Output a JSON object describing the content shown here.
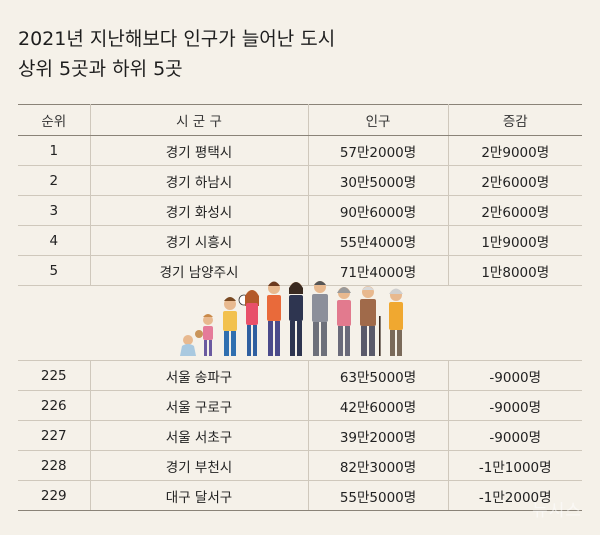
{
  "title": {
    "line1": "2021년 지난해보다 인구가 늘어난 도시",
    "line2": "상위 5곳과 하위 5곳"
  },
  "headers": [
    "순위",
    "시 군 구",
    "인구",
    "증감"
  ],
  "top_rows": [
    {
      "rank": "1",
      "city": "경기 평택시",
      "population": "57만2000명",
      "change": "2만9000명"
    },
    {
      "rank": "2",
      "city": "경기 하남시",
      "population": "30만5000명",
      "change": "2만6000명"
    },
    {
      "rank": "3",
      "city": "경기 화성시",
      "population": "90만6000명",
      "change": "2만6000명"
    },
    {
      "rank": "4",
      "city": "경기 시흥시",
      "population": "55만4000명",
      "change": "1만9000명"
    },
    {
      "rank": "5",
      "city": "경기 남양주시",
      "population": "71만4000명",
      "change": "1만8000명"
    }
  ],
  "bottom_rows": [
    {
      "rank": "225",
      "city": "서울 송파구",
      "population": "63만5000명",
      "change": "-9000명"
    },
    {
      "rank": "226",
      "city": "서울 구로구",
      "population": "42만6000명",
      "change": "-9000명"
    },
    {
      "rank": "227",
      "city": "서울 서초구",
      "population": "39만2000명",
      "change": "-9000명"
    },
    {
      "rank": "228",
      "city": "경기 부천시",
      "population": "82만3000명",
      "change": "-1만1000명"
    },
    {
      "rank": "229",
      "city": "대구 달서구",
      "population": "55만5000명",
      "change": "-1만2000명"
    }
  ],
  "watermark": "뉴시스",
  "colors": {
    "background": "#f5f1e9",
    "rule_dark": "#8a8378",
    "rule_light": "#cfc8bc"
  },
  "illustration": "people-generations-illustration"
}
